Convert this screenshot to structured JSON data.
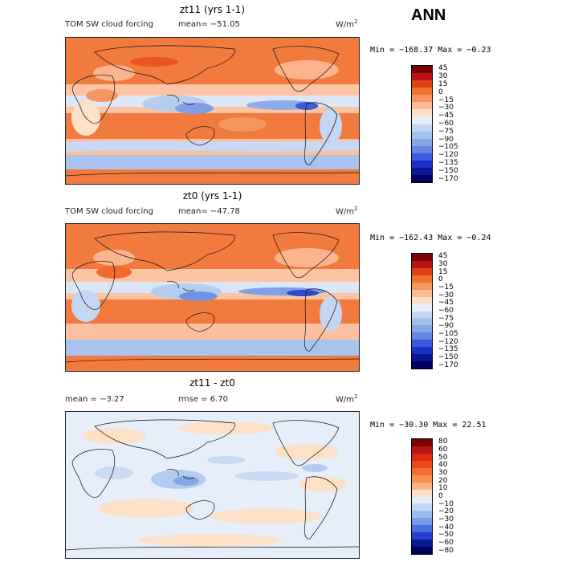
{
  "season": "ANN",
  "panels": [
    {
      "title": "zt11 (yrs 1-1)",
      "variable": "TOM SW cloud forcing",
      "stat": "mean= −51.05",
      "units": "W/m",
      "units_exp": "2",
      "minmax": "Min = −168.37 Max =  −0.23",
      "levels": [
        "45",
        "30",
        "15",
        "0",
        "−15",
        "−30",
        "−45",
        "−60",
        "−75",
        "−90",
        "−105",
        "−120",
        "−135",
        "−150",
        "−170"
      ],
      "colors": [
        "#7a0000",
        "#b81414",
        "#e0401a",
        "#f0702e",
        "#f59560",
        "#fcbb95",
        "#fde0c8",
        "#e8eef9",
        "#c3d6f2",
        "#a5c0ec",
        "#86a6e8",
        "#6585e0",
        "#3a5be0",
        "#1c30c8",
        "#0a1590",
        "#000060"
      ]
    },
    {
      "title": "zt0 (yrs 1-1)",
      "variable": "TOM SW cloud forcing",
      "stat": "mean= −47.78",
      "units": "W/m",
      "units_exp": "2",
      "minmax": "Min = −162.43 Max =  −0.24",
      "levels": [
        "45",
        "30",
        "15",
        "0",
        "−15",
        "−30",
        "−45",
        "−60",
        "−75",
        "−90",
        "−105",
        "−120",
        "−135",
        "−150",
        "−170"
      ],
      "colors": [
        "#7a0000",
        "#b81414",
        "#e0401a",
        "#f0702e",
        "#f59560",
        "#fcbb95",
        "#fde0c8",
        "#e8eef9",
        "#c3d6f2",
        "#a5c0ec",
        "#86a6e8",
        "#6585e0",
        "#3a5be0",
        "#1c30c8",
        "#0a1590",
        "#000060"
      ]
    },
    {
      "title": "zt11 - zt0",
      "mean": "mean =   −3.27",
      "rmse": "rmse =   6.70",
      "units": "W/m",
      "units_exp": "2",
      "minmax": "Min = −30.30 Max =  22.51",
      "levels": [
        "80",
        "60",
        "50",
        "40",
        "30",
        "20",
        "10",
        "0",
        "−10",
        "−20",
        "−30",
        "−40",
        "−50",
        "−60",
        "−80"
      ],
      "colors": [
        "#7a0000",
        "#b81414",
        "#dc2a14",
        "#ec4a1c",
        "#f36c30",
        "#f88f52",
        "#fbb384",
        "#fde0c8",
        "#e2ecfa",
        "#c3d6f2",
        "#9ebbec",
        "#789ce4",
        "#4a6fe0",
        "#2440d0",
        "#0a1890",
        "#000060"
      ]
    }
  ]
}
